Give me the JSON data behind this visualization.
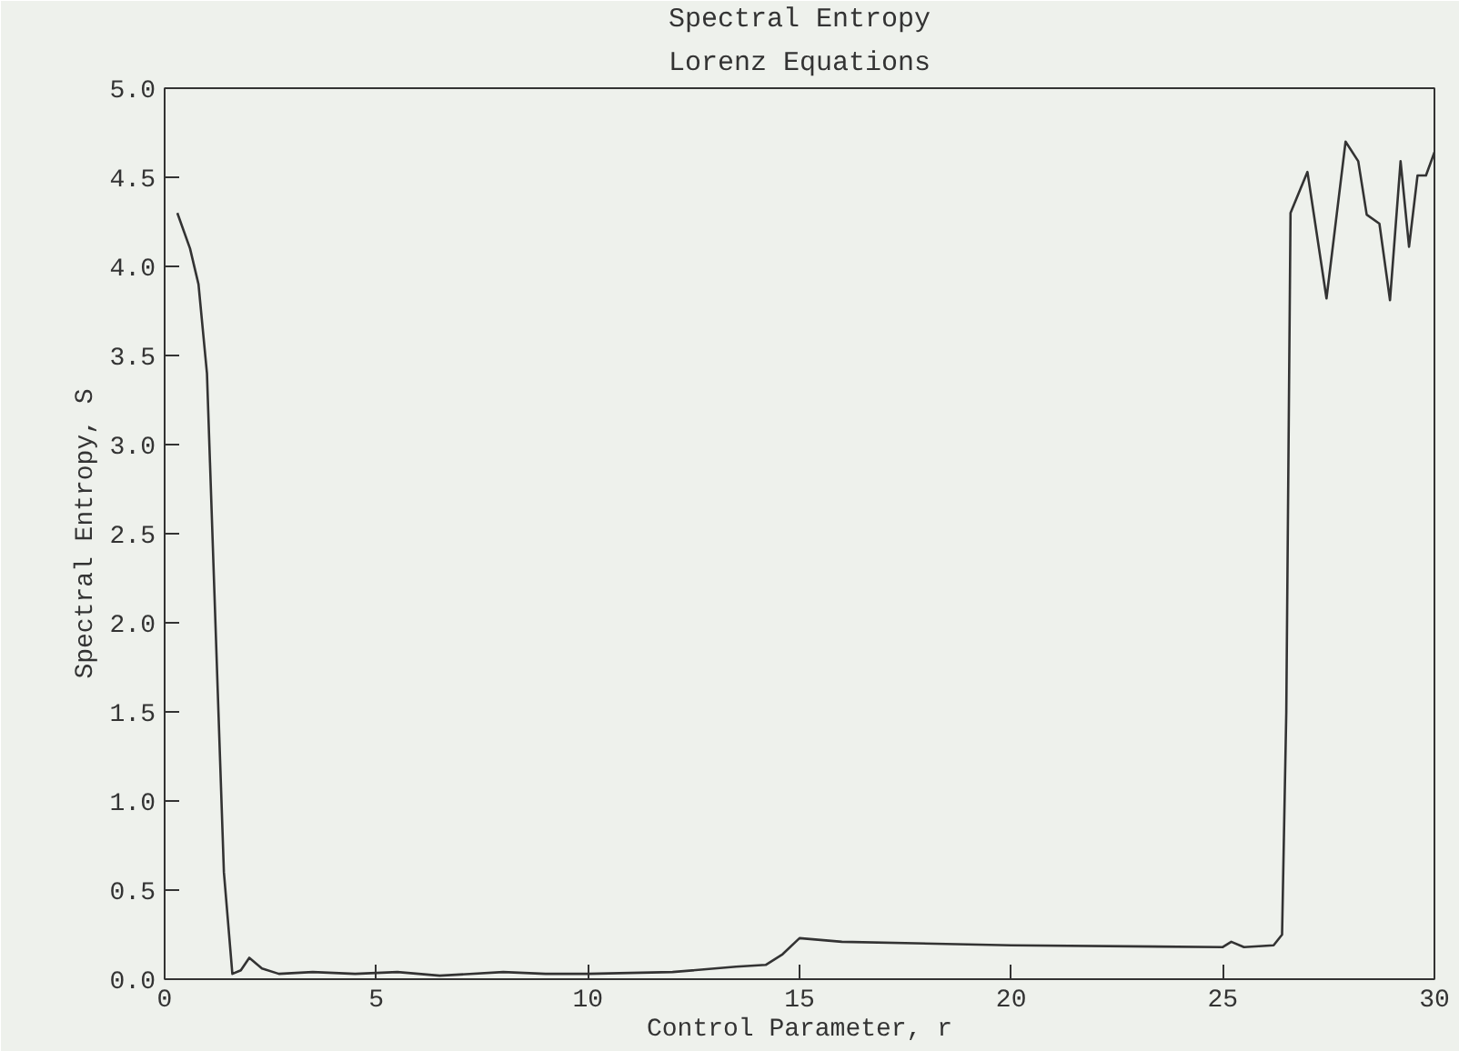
{
  "chart_data": {
    "type": "line",
    "title": "Spectral Entropy",
    "subtitle": "Lorenz Equations",
    "xlabel": "Control Parameter, r",
    "ylabel": "Spectral Entropy, S",
    "xlim": [
      0,
      30
    ],
    "ylim": [
      0,
      5
    ],
    "xticks": [
      0,
      5,
      10,
      15,
      20,
      25,
      30
    ],
    "yticks": [
      {
        "value": 0,
        "label": "0.0"
      },
      {
        "value": 0.5,
        "label": "0.5"
      },
      {
        "value": 1,
        "label": "1.0"
      },
      {
        "value": 1.5,
        "label": "1.5"
      },
      {
        "value": 2,
        "label": "2.0"
      },
      {
        "value": 2.5,
        "label": "2.5"
      },
      {
        "value": 3,
        "label": "3.0"
      },
      {
        "value": 3.5,
        "label": "3.5"
      },
      {
        "value": 4,
        "label": "4.0"
      },
      {
        "value": 4.5,
        "label": "4.5"
      },
      {
        "value": 5,
        "label": "5.0"
      }
    ],
    "grid": false,
    "marker": "none",
    "line_style": "solid",
    "series": [
      {
        "color": "#333333",
        "x": [
          0.3,
          0.6,
          0.8,
          1.0,
          1.2,
          1.4,
          1.6,
          1.8,
          2.0,
          2.3,
          2.7,
          3.5,
          4.5,
          5.5,
          6.5,
          8,
          9,
          10,
          12,
          13.5,
          14.2,
          14.6,
          15,
          16,
          20,
          25,
          25.2,
          25.5,
          26.2,
          26.4,
          26.5,
          26.6,
          27.0,
          27.45,
          27.9,
          28.2,
          28.4,
          28.7,
          28.95,
          29.2,
          29.4,
          29.6,
          29.8,
          30
        ],
        "values": [
          4.3,
          4.1,
          3.9,
          3.4,
          2.0,
          0.6,
          0.03,
          0.05,
          0.12,
          0.06,
          0.03,
          0.04,
          0.03,
          0.04,
          0.02,
          0.04,
          0.03,
          0.03,
          0.04,
          0.07,
          0.08,
          0.14,
          0.23,
          0.21,
          0.19,
          0.18,
          0.21,
          0.18,
          0.19,
          0.25,
          1.5,
          4.3,
          4.53,
          3.82,
          4.7,
          4.59,
          4.29,
          4.24,
          3.81,
          4.59,
          4.11,
          4.51,
          4.51,
          4.64
        ]
      }
    ]
  }
}
